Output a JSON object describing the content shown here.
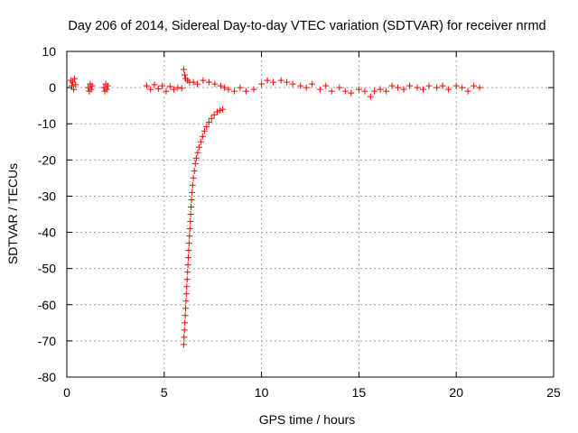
{
  "chart_data": {
    "type": "scatter",
    "title": "Day 206 of 2014, Sidereal Day-to-day VTEC variation (SDTVAR) for receiver nrmd",
    "xlabel": "GPS time / hours",
    "ylabel": "SDTVAR / TECUs",
    "xlim": [
      0,
      25
    ],
    "ylim": [
      -80,
      10
    ],
    "xticks": [
      0,
      5,
      10,
      15,
      20,
      25
    ],
    "yticks": [
      10,
      0,
      -10,
      -20,
      -30,
      -40,
      -50,
      -60,
      -70,
      -80
    ],
    "grid": true,
    "marker": "+",
    "series": [
      {
        "name": "SDTVAR",
        "color": "#ff0000",
        "points": [
          [
            0.2,
            2.0
          ],
          [
            0.25,
            0.5
          ],
          [
            0.3,
            1.5
          ],
          [
            0.35,
            -0.5
          ],
          [
            0.4,
            2.5
          ],
          [
            0.45,
            0.8
          ],
          [
            1.1,
            0.0
          ],
          [
            1.15,
            -1.0
          ],
          [
            1.2,
            1.0
          ],
          [
            1.25,
            -0.5
          ],
          [
            1.3,
            0.5
          ],
          [
            1.9,
            0.0
          ],
          [
            1.95,
            -1.0
          ],
          [
            2.0,
            1.0
          ],
          [
            2.05,
            -0.5
          ],
          [
            2.1,
            0.5
          ],
          [
            4.1,
            0.5
          ],
          [
            4.3,
            -0.5
          ],
          [
            4.5,
            0.8
          ],
          [
            4.7,
            -0.3
          ],
          [
            4.9,
            0.5
          ],
          [
            5.1,
            -1.0
          ],
          [
            5.3,
            0.3
          ],
          [
            5.5,
            -0.5
          ],
          [
            5.7,
            0.0
          ],
          [
            5.9,
            -0.2
          ],
          [
            6.0,
            5.0
          ],
          [
            6.05,
            3.5
          ],
          [
            6.1,
            2.5
          ],
          [
            6.2,
            2.0
          ],
          [
            6.3,
            1.5
          ],
          [
            6.5,
            1.5
          ],
          [
            6.7,
            1.0
          ],
          [
            7.0,
            2.0
          ],
          [
            7.3,
            1.5
          ],
          [
            7.6,
            1.0
          ],
          [
            7.9,
            0.5
          ],
          [
            8.1,
            0.0
          ],
          [
            8.3,
            -0.5
          ],
          [
            8.6,
            -1.0
          ],
          [
            8.9,
            0.0
          ],
          [
            9.2,
            -1.0
          ],
          [
            9.6,
            -0.5
          ],
          [
            10.0,
            1.0
          ],
          [
            10.3,
            2.0
          ],
          [
            10.6,
            1.5
          ],
          [
            11.0,
            2.0
          ],
          [
            11.3,
            1.5
          ],
          [
            11.6,
            1.0
          ],
          [
            12.0,
            0.5
          ],
          [
            12.3,
            0.0
          ],
          [
            12.6,
            1.0
          ],
          [
            13.0,
            -0.5
          ],
          [
            13.3,
            0.5
          ],
          [
            13.6,
            -1.0
          ],
          [
            14.0,
            0.0
          ],
          [
            14.3,
            -1.0
          ],
          [
            14.6,
            -1.5
          ],
          [
            15.0,
            -0.5
          ],
          [
            15.3,
            -1.0
          ],
          [
            15.6,
            -2.5
          ],
          [
            15.8,
            -1.0
          ],
          [
            16.1,
            -0.5
          ],
          [
            16.4,
            -1.0
          ],
          [
            16.7,
            0.5
          ],
          [
            17.0,
            0.0
          ],
          [
            17.3,
            -0.5
          ],
          [
            17.6,
            0.5
          ],
          [
            18.0,
            0.0
          ],
          [
            18.3,
            -0.5
          ],
          [
            18.6,
            0.5
          ],
          [
            19.0,
            0.0
          ],
          [
            19.3,
            0.5
          ],
          [
            19.6,
            -0.5
          ],
          [
            20.0,
            0.5
          ],
          [
            20.3,
            0.0
          ],
          [
            20.6,
            -1.0
          ],
          [
            20.9,
            0.5
          ],
          [
            21.2,
            0.0
          ],
          [
            6.0,
            -71.0
          ],
          [
            6.02,
            -69.0
          ],
          [
            6.04,
            -67.0
          ],
          [
            6.06,
            -65.0
          ],
          [
            6.08,
            -63.0
          ],
          [
            6.1,
            -61.0
          ],
          [
            6.12,
            -59.0
          ],
          [
            6.14,
            -57.0
          ],
          [
            6.16,
            -55.0
          ],
          [
            6.18,
            -53.0
          ],
          [
            6.2,
            -51.0
          ],
          [
            6.22,
            -49.0
          ],
          [
            6.24,
            -47.0
          ],
          [
            6.26,
            -45.0
          ],
          [
            6.28,
            -43.0
          ],
          [
            6.3,
            -41.0
          ],
          [
            6.32,
            -39.0
          ],
          [
            6.34,
            -37.0
          ],
          [
            6.36,
            -35.0
          ],
          [
            6.38,
            -33.0
          ],
          [
            6.4,
            -31.0
          ],
          [
            6.43,
            -29.0
          ],
          [
            6.46,
            -27.0
          ],
          [
            6.5,
            -25.0
          ],
          [
            6.55,
            -23.0
          ],
          [
            6.6,
            -21.0
          ],
          [
            6.65,
            -19.5
          ],
          [
            6.72,
            -18.0
          ],
          [
            6.8,
            -16.5
          ],
          [
            6.88,
            -15.0
          ],
          [
            6.97,
            -13.5
          ],
          [
            7.07,
            -12.0
          ],
          [
            7.18,
            -10.8
          ],
          [
            7.3,
            -9.6
          ],
          [
            7.43,
            -8.5
          ],
          [
            7.57,
            -7.5
          ],
          [
            7.72,
            -6.7
          ],
          [
            7.87,
            -6.3
          ],
          [
            8.0,
            -6.0
          ]
        ]
      }
    ]
  }
}
